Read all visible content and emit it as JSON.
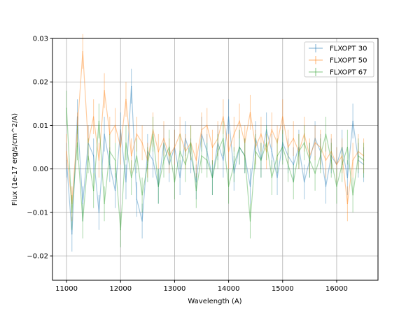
{
  "chart_data": {
    "type": "line",
    "title": "",
    "xlabel": "Wavelength (A)",
    "ylabel": "Flux (1e-17 erg/s/cm^2/A)",
    "xlim": [
      10740,
      16765
    ],
    "ylim": [
      -0.0256,
      0.03
    ],
    "xticks": [
      11000,
      12000,
      13000,
      14000,
      15000,
      16000
    ],
    "xtick_labels": [
      "11000",
      "12000",
      "13000",
      "14000",
      "15000",
      "16000"
    ],
    "yticks": [
      -0.02,
      -0.01,
      0.0,
      0.01,
      0.02,
      0.03
    ],
    "ytick_labels": [
      "−0.02",
      "−0.01",
      "0.00",
      "0.01",
      "0.02",
      "0.03"
    ],
    "grid": true,
    "legend_position": "top-right",
    "x_start": 11000,
    "x_end": 16500,
    "series": [
      {
        "name": "FLXOPT 30",
        "color": "#1f77b4",
        "error": 0.004,
        "values": [
          0.002,
          -0.015,
          0.012,
          -0.008,
          0.006,
          0.003,
          -0.01,
          0.008,
          0.001,
          -0.005,
          0.009,
          -0.003,
          0.019,
          -0.007,
          -0.012,
          0.004,
          0.002,
          -0.004,
          0.006,
          0.001,
          0.005,
          -0.002,
          0.007,
          0.003,
          -0.003,
          0.008,
          0.004,
          -0.002,
          0.006,
          0.002,
          0.012,
          -0.001,
          0.005,
          0.003,
          -0.004,
          0.007,
          0.002,
          0.009,
          0.004,
          -0.002,
          0.006,
          0.003,
          0.001,
          0.005,
          -0.003,
          0.002,
          0.007,
          0.004,
          -0.004,
          0.003,
          0.001,
          0.005,
          -0.002,
          0.011,
          0.002,
          0.001
        ]
      },
      {
        "name": "FLXOPT 50",
        "color": "#ff7f0e",
        "error": 0.004,
        "values": [
          0.004,
          -0.008,
          0.009,
          0.027,
          0.006,
          0.012,
          0.002,
          0.018,
          0.008,
          0.01,
          0.005,
          0.016,
          0.003,
          0.008,
          0.006,
          0.002,
          0.009,
          0.004,
          0.007,
          0.003,
          0.005,
          0.008,
          0.004,
          0.006,
          0.002,
          0.009,
          0.01,
          0.005,
          0.007,
          0.012,
          0.004,
          0.008,
          0.011,
          0.006,
          0.013,
          0.005,
          0.008,
          0.004,
          0.009,
          0.006,
          0.012,
          0.005,
          0.007,
          0.004,
          0.008,
          0.003,
          0.006,
          0.005,
          0.002,
          0.004,
          0.001,
          0.003,
          -0.008,
          0.002,
          0.004,
          0.003
        ]
      },
      {
        "name": "FLXOPT 67",
        "color": "#2ca02c",
        "error": 0.004,
        "values": [
          0.014,
          -0.01,
          0.006,
          -0.012,
          0.003,
          -0.005,
          0.011,
          -0.008,
          0.004,
          0.002,
          -0.014,
          0.006,
          -0.002,
          0.003,
          -0.006,
          0.001,
          0.008,
          -0.004,
          0.002,
          0.005,
          -0.003,
          0.004,
          0.001,
          0.006,
          -0.005,
          0.003,
          0.002,
          -0.002,
          0.004,
          0.007,
          -0.004,
          0.001,
          0.005,
          0.003,
          -0.012,
          0.004,
          0.002,
          0.006,
          -0.002,
          0.003,
          0.005,
          0.001,
          -0.003,
          0.004,
          0.006,
          0.002,
          -0.001,
          0.003,
          0.008,
          0.002,
          -0.004,
          0.001,
          0.005,
          -0.006,
          0.003,
          0.002
        ]
      }
    ]
  }
}
